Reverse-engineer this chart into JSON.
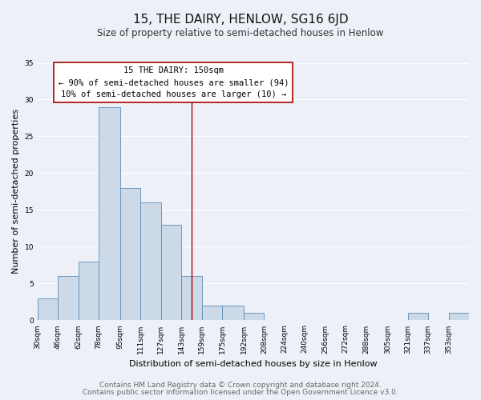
{
  "title": "15, THE DAIRY, HENLOW, SG16 6JD",
  "subtitle": "Size of property relative to semi-detached houses in Henlow",
  "xlabel": "Distribution of semi-detached houses by size in Henlow",
  "ylabel": "Number of semi-detached properties",
  "bin_edges": [
    30,
    46,
    62,
    78,
    95,
    111,
    127,
    143,
    159,
    175,
    192,
    208,
    224,
    240,
    256,
    272,
    288,
    305,
    321,
    337,
    353,
    369
  ],
  "bin_counts": [
    3,
    6,
    8,
    29,
    18,
    16,
    13,
    6,
    2,
    2,
    1,
    0,
    0,
    0,
    0,
    0,
    0,
    0,
    1,
    0,
    1
  ],
  "tick_positions": [
    30,
    46,
    62,
    78,
    95,
    111,
    127,
    143,
    159,
    175,
    192,
    208,
    224,
    240,
    256,
    272,
    288,
    305,
    321,
    337,
    353
  ],
  "tick_labels": [
    "30sqm",
    "46sqm",
    "62sqm",
    "78sqm",
    "95sqm",
    "111sqm",
    "127sqm",
    "143sqm",
    "159sqm",
    "175sqm",
    "192sqm",
    "208sqm",
    "224sqm",
    "240sqm",
    "256sqm",
    "272sqm",
    "288sqm",
    "305sqm",
    "321sqm",
    "337sqm",
    "353sqm"
  ],
  "bar_color": "#ccd9e8",
  "bar_edge_color": "#5b8db8",
  "vline_x": 151,
  "vline_color": "#aa0000",
  "annotation_title": "15 THE DAIRY: 150sqm",
  "annotation_line1": "← 90% of semi-detached houses are smaller (94)",
  "annotation_line2": "10% of semi-detached houses are larger (10) →",
  "annotation_box_color": "#ffffff",
  "annotation_box_edge": "#aa0000",
  "ylim": [
    0,
    35
  ],
  "yticks": [
    0,
    5,
    10,
    15,
    20,
    25,
    30,
    35
  ],
  "footnote1": "Contains HM Land Registry data © Crown copyright and database right 2024.",
  "footnote2": "Contains public sector information licensed under the Open Government Licence v3.0.",
  "bg_color": "#edf1f7",
  "plot_bg_color": "#edf1f7",
  "grid_color": "#ffffff",
  "title_fontsize": 11,
  "subtitle_fontsize": 8.5,
  "axis_label_fontsize": 8,
  "tick_fontsize": 6.5,
  "annotation_fontsize": 7.5,
  "footnote_fontsize": 6.5
}
